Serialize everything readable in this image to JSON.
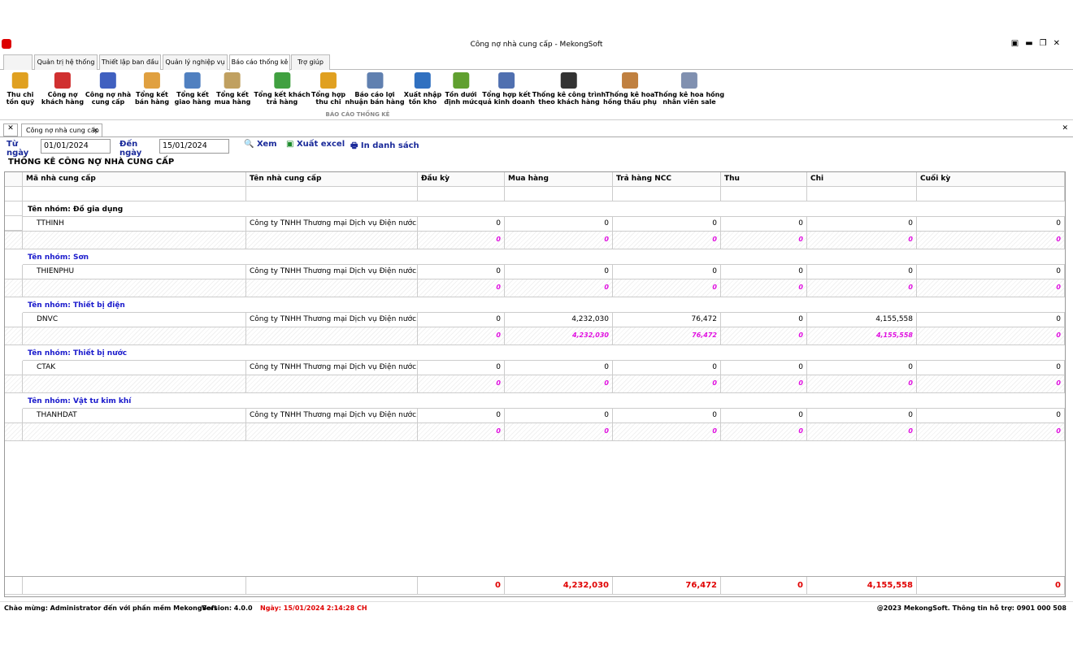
{
  "window": {
    "title": "Công nợ nhà cung cấp - MekongSoft"
  },
  "menu_tabs": [
    "Quản trị hệ thống",
    "Thiết lập ban đầu",
    "Quản lý nghiệp vụ",
    "Báo cáo thống kê",
    "Trợ giúp"
  ],
  "ribbon": {
    "group": "BÁO CÁO THỐNG KÊ",
    "buttons": [
      "Thu chi\ntồn quỹ",
      "Công nợ\nkhách hàng",
      "Công nợ nhà\ncung cấp",
      "Tổng kết\nbán hàng",
      "Tổng kết\ngiao hàng",
      "Tổng kết\nmua hàng",
      "Tổng kết khách\ntrả hàng",
      "Tổng hợp\nthu chi",
      "Báo cáo lợi\nnhuận bán hàng",
      "Xuất nhập\ntồn kho",
      "Tồn dưới\nđịnh mức",
      "Tổng hợp kết\nquả kinh doanh",
      "Thống kê công trình\ntheo khách hàng",
      "Thống kê hoa\nhồng thầu phụ",
      "Thống kê hoa hồng\nnhân viên sale"
    ]
  },
  "doc_tab": "Công nợ nhà cung cấp",
  "filter": {
    "from_label": "Từ ngày",
    "from": "01/01/2024",
    "to_label": "Đến ngày",
    "to": "15/01/2024",
    "actions": [
      "Xem",
      "Xuất excel",
      "In danh sách"
    ]
  },
  "report_title": "THỐNG KÊ CÔNG NỢ NHÀ CUNG CẤP",
  "table": {
    "columns": [
      "Mã nhà cung cấp",
      "Tên nhà cung cấp",
      "Đầu kỳ",
      "Mua hàng",
      "Trả hàng NCC",
      "Thu",
      "Chi",
      "Cuối kỳ"
    ],
    "groups": [
      {
        "label": "Tên nhóm: Đồ gia dụng",
        "rows": [
          [
            "TTHINH",
            "Công ty TNHH Thương mại Dịch vụ Điện nước...",
            "0",
            "0",
            "0",
            "0",
            "0",
            "0"
          ]
        ],
        "totals": [
          "0",
          "0",
          "0",
          "0",
          "0",
          "0"
        ]
      },
      {
        "label": "Tên nhóm: Sơn",
        "rows": [
          [
            "THIENPHU",
            "Công ty TNHH Thương mại Dịch vụ Điện nước...",
            "0",
            "0",
            "0",
            "0",
            "0",
            "0"
          ]
        ],
        "totals": [
          "0",
          "0",
          "0",
          "0",
          "0",
          "0"
        ]
      },
      {
        "label": "Tên nhóm: Thiết bị điện",
        "rows": [
          [
            "DNVC",
            "Công ty TNHH Thương mại Dịch vụ Điện nước...",
            "0",
            "4,232,030",
            "76,472",
            "0",
            "4,155,558",
            "0"
          ]
        ],
        "totals": [
          "0",
          "4,232,030",
          "76,472",
          "0",
          "4,155,558",
          "0"
        ]
      },
      {
        "label": "Tên nhóm: Thiết bị nước",
        "rows": [
          [
            "CTAK",
            "Công ty TNHH Thương mại Dịch vụ Điện nước...",
            "0",
            "0",
            "0",
            "0",
            "0",
            "0"
          ]
        ],
        "totals": [
          "0",
          "0",
          "0",
          "0",
          "0",
          "0"
        ]
      },
      {
        "label": "Tên nhóm: Vật tư kim khí",
        "rows": [
          [
            "THANHDAT",
            "Công ty TNHH Thương mại Dịch vụ Điện nước...",
            "0",
            "0",
            "0",
            "0",
            "0",
            "0"
          ]
        ],
        "totals": [
          "0",
          "0",
          "0",
          "0",
          "0",
          "0"
        ]
      }
    ],
    "grand_totals": [
      "0",
      "4,232,030",
      "76,472",
      "0",
      "4,155,558",
      "0"
    ]
  },
  "status": {
    "welcome": "Chào mừng: Administrator đến với phần mềm MekongSoft",
    "version": "Version: 4.0.0",
    "date": "Ngày: 15/01/2024 2:14:28 CH",
    "support": "@2023 MekongSoft. Thông tin hỗ trợ: 0901 000 508"
  }
}
